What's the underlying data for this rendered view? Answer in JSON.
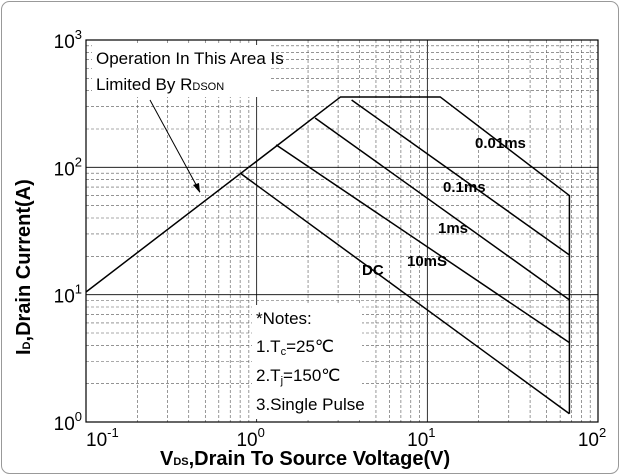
{
  "chart_data": {
    "type": "line",
    "log_x": true,
    "log_y": true,
    "grid": true,
    "minor_grid": true,
    "x_label": {
      "main": "V",
      "sub": "DS",
      "rest": ",Drain To Source Voltage(V)"
    },
    "y_label": {
      "main": "I",
      "sub": "D",
      "rest": ",Drain Current(A)"
    },
    "xlim": [
      0.1,
      100
    ],
    "xticks": [
      {
        "value": 0.1,
        "label": "10",
        "exponent": "-1"
      },
      {
        "value": 1,
        "label": "10",
        "exponent": "0"
      },
      {
        "value": 10,
        "label": "10",
        "exponent": "1"
      },
      {
        "value": 100,
        "label": "10",
        "exponent": "2"
      }
    ],
    "ylim": [
      1,
      1000
    ],
    "yticks": [
      {
        "value": 1,
        "label": "10",
        "exponent": "0"
      },
      {
        "value": 10,
        "label": "10",
        "exponent": "1"
      },
      {
        "value": 100,
        "label": "10",
        "exponent": "2"
      },
      {
        "value": 1000,
        "label": "10",
        "exponent": "3"
      }
    ],
    "series": [
      {
        "name": "0.01ms",
        "color": "#000000",
        "x": [
          0.1,
          3.1,
          11.9,
          68,
          68
        ],
        "values": [
          10.5,
          357,
          357,
          60,
          1.16
        ]
      },
      {
        "name": "0.1ms",
        "color": "#000000",
        "x": [
          3.6,
          68
        ],
        "values": [
          338,
          20.5
        ]
      },
      {
        "name": "1ms",
        "color": "#000000",
        "x": [
          2.2,
          68
        ],
        "values": [
          244,
          9.1
        ]
      },
      {
        "name": "10mS",
        "color": "#000000",
        "x": [
          1.3,
          68
        ],
        "values": [
          150,
          4.2
        ]
      },
      {
        "name": "DC",
        "color": "#000000",
        "x": [
          0.81,
          68
        ],
        "values": [
          89,
          1.16
        ]
      }
    ],
    "annotation": {
      "line1": "Operation In This Area Is",
      "line2": "Limited By R",
      "line2_sub": "DSON"
    },
    "notes": {
      "title": "*Notes:",
      "n1": "1.T",
      "n1_sub": "c",
      "n1_rest": "=25℃",
      "n2": "2.T",
      "n2_sub": "j",
      "n2_rest": "=150℃",
      "n3": "3.Single Pulse"
    }
  }
}
